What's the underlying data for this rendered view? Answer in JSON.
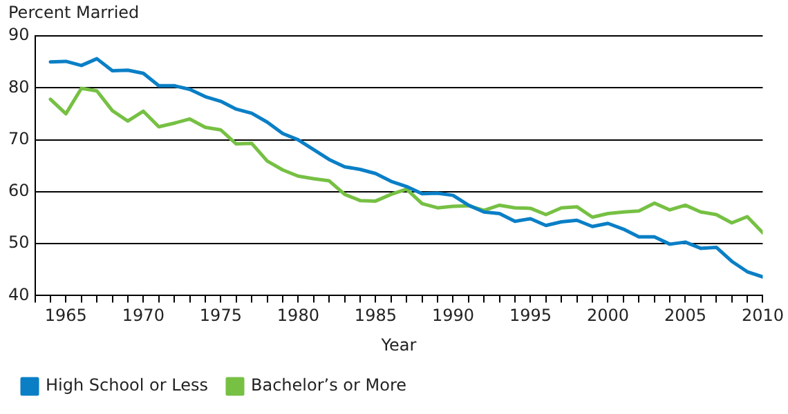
{
  "chart_data": {
    "type": "line",
    "ylabel": "Percent Married",
    "xlabel": "Year",
    "x": [
      1964,
      1965,
      1966,
      1967,
      1968,
      1969,
      1970,
      1971,
      1972,
      1973,
      1974,
      1975,
      1976,
      1977,
      1978,
      1979,
      1980,
      1981,
      1982,
      1983,
      1984,
      1985,
      1986,
      1987,
      1988,
      1989,
      1990,
      1991,
      1992,
      1993,
      1994,
      1995,
      1996,
      1997,
      1998,
      1999,
      2000,
      2001,
      2002,
      2003,
      2004,
      2005,
      2006,
      2007,
      2008,
      2009,
      2010
    ],
    "series": [
      {
        "name": "High School or Less",
        "color": "#0a7fc6",
        "values": [
          85,
          85.1,
          84.3,
          85.6,
          83.3,
          83.4,
          82.8,
          80.4,
          80.4,
          79.7,
          78.3,
          77.4,
          75.9,
          75.1,
          73.4,
          71.2,
          70,
          68.1,
          66.2,
          64.8,
          64.3,
          63.5,
          62,
          61,
          59.6,
          59.7,
          59.3,
          57.4,
          56.1,
          55.8,
          54.3,
          54.8,
          53.5,
          54.2,
          54.5,
          53.3,
          53.9,
          52.8,
          51.3,
          51.3,
          49.9,
          50.3,
          49.1,
          49.3,
          46.6,
          44.6,
          43.6
        ]
      },
      {
        "name": "Bachelor’s or More",
        "color": "#76c043",
        "values": [
          77.8,
          75,
          79.9,
          79.4,
          75.6,
          73.6,
          75.5,
          72.5,
          73.2,
          74,
          72.4,
          71.9,
          69.2,
          69.3,
          65.9,
          64.2,
          63,
          62.5,
          62.1,
          59.5,
          58.3,
          58.2,
          59.5,
          60.5,
          57.7,
          56.9,
          57.2,
          57.3,
          56.4,
          57.4,
          56.9,
          56.8,
          55.6,
          56.9,
          57.1,
          55.1,
          55.8,
          56.1,
          56.3,
          57.8,
          56.5,
          57.4,
          56.1,
          55.6,
          54,
          55.2,
          52.1
        ]
      }
    ],
    "xlim": [
      1963,
      2010
    ],
    "xticks": [
      {
        "value": 1963,
        "label": null
      },
      {
        "value": 1964,
        "label": null
      },
      1965,
      {
        "value": 1966,
        "label": null
      },
      {
        "value": 1967,
        "label": null
      },
      {
        "value": 1968,
        "label": null
      },
      {
        "value": 1969,
        "label": null
      },
      1970,
      {
        "value": 1971,
        "label": null
      },
      {
        "value": 1972,
        "label": null
      },
      {
        "value": 1973,
        "label": null
      },
      {
        "value": 1974,
        "label": null
      },
      1975,
      {
        "value": 1976,
        "label": null
      },
      {
        "value": 1977,
        "label": null
      },
      {
        "value": 1978,
        "label": null
      },
      {
        "value": 1979,
        "label": null
      },
      1980,
      {
        "value": 1981,
        "label": null
      },
      {
        "value": 1982,
        "label": null
      },
      {
        "value": 1983,
        "label": null
      },
      {
        "value": 1984,
        "label": null
      },
      1985,
      {
        "value": 1986,
        "label": null
      },
      {
        "value": 1987,
        "label": null
      },
      {
        "value": 1988,
        "label": null
      },
      {
        "value": 1989,
        "label": null
      },
      1990,
      {
        "value": 1991,
        "label": null
      },
      {
        "value": 1992,
        "label": null
      },
      {
        "value": 1993,
        "label": null
      },
      {
        "value": 1994,
        "label": null
      },
      1995,
      {
        "value": 1996,
        "label": null
      },
      {
        "value": 1997,
        "label": null
      },
      {
        "value": 1998,
        "label": null
      },
      {
        "value": 1999,
        "label": null
      },
      2000,
      {
        "value": 2001,
        "label": null
      },
      {
        "value": 2002,
        "label": null
      },
      {
        "value": 2003,
        "label": null
      },
      {
        "value": 2004,
        "label": null
      },
      2005,
      {
        "value": 2006,
        "label": null
      },
      {
        "value": 2007,
        "label": null
      },
      {
        "value": 2008,
        "label": null
      },
      {
        "value": 2009,
        "label": null
      },
      2010
    ],
    "ylim": [
      40,
      90
    ],
    "yticks": [
      40,
      50,
      60,
      70,
      80,
      90
    ],
    "grid": "y",
    "legend": "bottom",
    "marker": "none",
    "line_style": "solid"
  }
}
